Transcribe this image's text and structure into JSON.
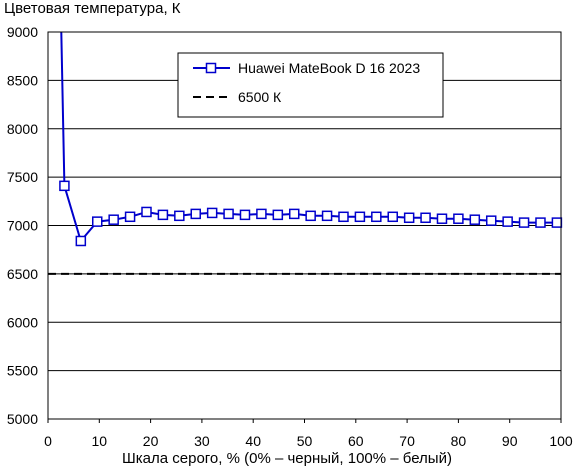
{
  "chart_data": {
    "type": "line",
    "title": "Цветовая температура, К",
    "xlabel": "Шкала серого, % (0% – черный, 100% – белый)",
    "ylabel": "",
    "xlim": [
      0,
      100
    ],
    "ylim": [
      5000,
      9000
    ],
    "x_ticks": [
      "0",
      "10",
      "20",
      "30",
      "40",
      "50",
      "60",
      "70",
      "80",
      "90",
      "100"
    ],
    "y_ticks": [
      "5000",
      "5500",
      "6000",
      "6500",
      "7000",
      "7500",
      "8000",
      "8500",
      "9000"
    ],
    "grid": "horizontal",
    "legend_position": "top-right",
    "series": [
      {
        "name": "Huawei MateBook D 16 2023",
        "color": "#0000cc",
        "marker": "square-open",
        "x": [
          2.6,
          3.2,
          6.4,
          9.6,
          12.8,
          16.0,
          19.2,
          22.4,
          25.6,
          28.8,
          32.0,
          35.2,
          38.4,
          41.6,
          44.8,
          48.0,
          51.2,
          54.4,
          57.6,
          60.8,
          64.0,
          67.2,
          70.4,
          73.6,
          76.8,
          80.0,
          83.2,
          86.4,
          89.6,
          92.8,
          96.0,
          99.2
        ],
        "y": [
          9000,
          7410,
          6840,
          7040,
          7060,
          7090,
          7140,
          7110,
          7100,
          7120,
          7130,
          7120,
          7110,
          7120,
          7110,
          7120,
          7100,
          7100,
          7090,
          7090,
          7090,
          7090,
          7080,
          7080,
          7070,
          7070,
          7060,
          7050,
          7040,
          7030,
          7030,
          7030
        ]
      },
      {
        "name": "6500 К",
        "color": "#000000",
        "style": "dashed",
        "x": [
          0,
          100
        ],
        "y": [
          6500,
          6500
        ]
      }
    ]
  }
}
